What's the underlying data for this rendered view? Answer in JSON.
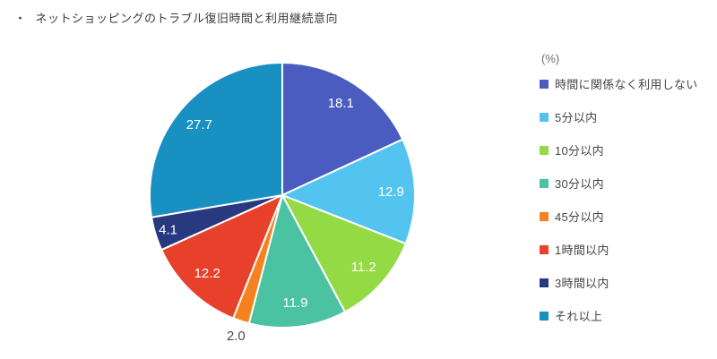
{
  "page": {
    "title_bullet": "・",
    "title": "ネットショッピングのトラブル復旧時間と利用継続意向"
  },
  "chart_data": {
    "type": "pie",
    "title": "ネットショッピングのトラブル復旧時間と利用継続意向",
    "unit_label": "(%)",
    "start_angle_deg": -90,
    "direction": "clockwise",
    "legend_position": "right",
    "slice_border_color": "#ffffff",
    "label_color_inside": "#ffffff",
    "label_color_outside": "#4a4a4a",
    "series": [
      {
        "label": "時間に関係なく利用しない",
        "value": 18.1,
        "color": "#4a5cc0"
      },
      {
        "label": "5分以内",
        "value": 12.9,
        "color": "#53c4f0"
      },
      {
        "label": "10分以内",
        "value": 11.2,
        "color": "#93da45"
      },
      {
        "label": "30分以内",
        "value": 11.9,
        "color": "#4bc3a3"
      },
      {
        "label": "45分以内",
        "value": 2.0,
        "color": "#f5821f"
      },
      {
        "label": "1時間以内",
        "value": 12.2,
        "color": "#e8412b"
      },
      {
        "label": "3時間以内",
        "value": 4.1,
        "color": "#29397f"
      },
      {
        "label": "それ以上",
        "value": 27.7,
        "color": "#1890c2"
      }
    ]
  }
}
